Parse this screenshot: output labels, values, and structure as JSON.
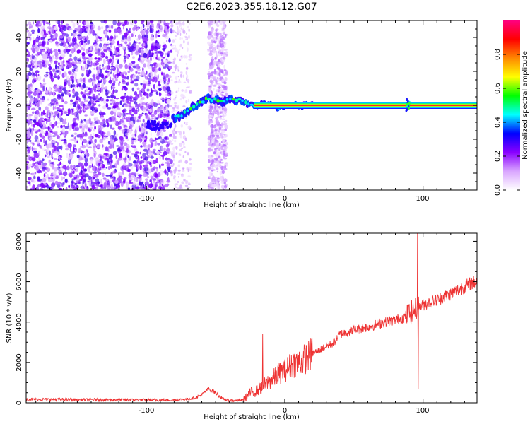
{
  "chart_data": [
    {
      "type": "heatmap",
      "title": "C2E6.2023.355.18.12.G07",
      "xlabel": "Height of straight line (km)",
      "ylabel": "Frequency (Hz)",
      "xlim": [
        -187,
        139
      ],
      "ylim": [
        -50,
        50
      ],
      "x_ticks": [
        "-100",
        "0",
        "100"
      ],
      "y_ticks": [
        "40",
        "20",
        "0",
        "-20",
        "-40"
      ],
      "grid": false,
      "colorbar": {
        "label": "Normalized spectral amplitude",
        "range": [
          0,
          1
        ],
        "ticks": [
          "0.0",
          "0.2",
          "0.4",
          "0.6",
          "0.8"
        ],
        "colors": [
          "#ffffff",
          "#d9a6ff",
          "#8a00ff",
          "#0000ff",
          "#00ffff",
          "#00ff00",
          "#ffff00",
          "#ff8800",
          "#ff0000",
          "#ff0080"
        ]
      },
      "features": {
        "noise_region_x": [
          -187,
          -82
        ],
        "noise_stripe_x": [
          -55,
          -42
        ],
        "rising_track": {
          "x": [
            -81,
            -75,
            -70,
            -65,
            -60,
            -55,
            -50,
            -45,
            -40,
            -35,
            -30,
            -25,
            -20,
            -15,
            -10,
            -5,
            0,
            5,
            10,
            15,
            20
          ],
          "freq": [
            -8,
            -6,
            -3,
            0,
            2,
            4,
            3,
            2,
            4,
            3,
            2,
            0,
            0,
            1,
            0,
            -1,
            0,
            0,
            0,
            0,
            0
          ]
        },
        "carrier_line": {
          "x": [
            20,
            139
          ],
          "freq": 0
        },
        "disturbance_x": 89
      }
    },
    {
      "type": "line",
      "title": "",
      "xlabel": "Height of straight line (km)",
      "ylabel": "SNR (10 * v/v)",
      "xlim": [
        -187,
        139
      ],
      "ylim": [
        0,
        8400
      ],
      "x_ticks": [
        "-100",
        "0",
        "100"
      ],
      "y_ticks": [
        "0",
        "2000",
        "4000",
        "6000",
        "8000"
      ],
      "grid": false,
      "series": [
        {
          "color": "#ee3333",
          "x": [
            -187,
            -150,
            -120,
            -90,
            -80,
            -70,
            -65,
            -60,
            -55,
            -50,
            -45,
            -40,
            -35,
            -30,
            -25,
            -20,
            -15,
            -10,
            -5,
            0,
            5,
            10,
            15,
            20,
            25,
            30,
            35,
            40,
            50,
            60,
            70,
            80,
            85,
            90,
            95,
            100,
            110,
            120,
            130,
            139
          ],
          "y": [
            170,
            160,
            150,
            140,
            140,
            180,
            250,
            400,
            700,
            500,
            200,
            120,
            100,
            150,
            500,
            600,
            900,
            1100,
            1400,
            1600,
            1900,
            2000,
            2200,
            2450,
            2600,
            2800,
            2950,
            3400,
            3600,
            3750,
            3950,
            4100,
            4200,
            4400,
            4650,
            4850,
            5100,
            5400,
            5750,
            6050
          ]
        }
      ],
      "spikes": [
        {
          "x": -16,
          "value": 3400
        },
        {
          "x": 96,
          "value": 8400,
          "low": 700
        }
      ]
    }
  ]
}
